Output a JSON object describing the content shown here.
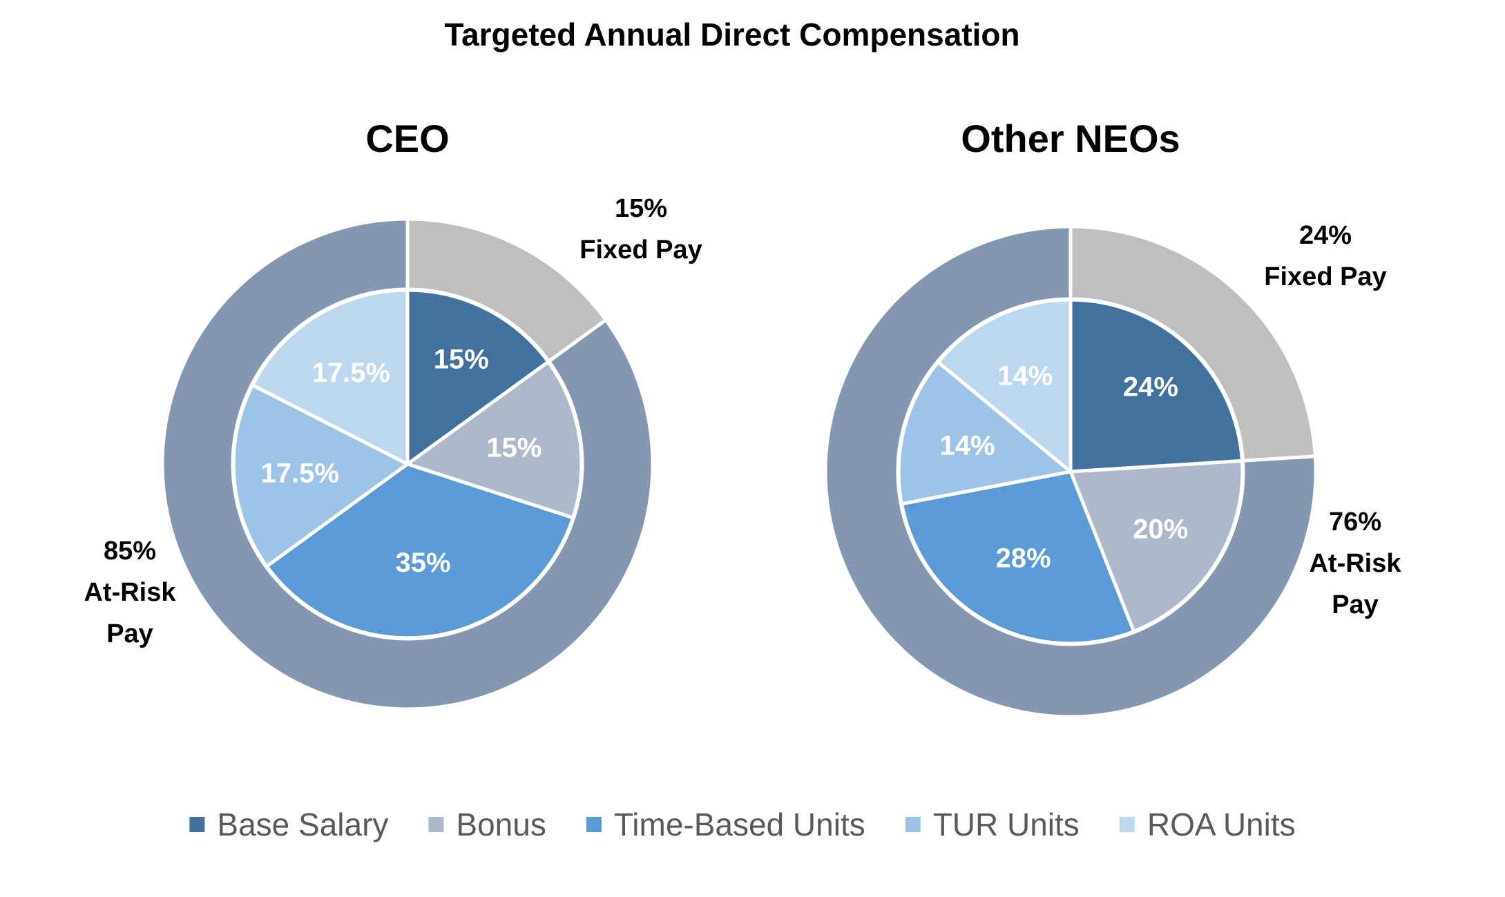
{
  "chart_data": {
    "type": "pie",
    "title": "Targeted Annual Direct Compensation",
    "categories": [
      "Base Salary",
      "Bonus",
      "Time-Based Units",
      "TUR Units",
      "ROA Units"
    ],
    "colors": {
      "Base Salary": "#41719c",
      "Bonus": "#adb9ca",
      "Time-Based Units": "#5b9bd5",
      "TUR Units": "#9dc3e6",
      "ROA Units": "#bdd7ee",
      "Fixed Pay": "#bfbfbf",
      "At-Risk Pay": "#8497b0",
      "separator": "#ffffff",
      "text_dark": "#000000",
      "text_light": "#ffffff",
      "legend_text": "#595959"
    },
    "charts": [
      {
        "name": "CEO",
        "inner": [
          {
            "category": "Base Salary",
            "value": 15,
            "label": "15%"
          },
          {
            "category": "Bonus",
            "value": 15,
            "label": "15%"
          },
          {
            "category": "Time-Based Units",
            "value": 35,
            "label": "35%"
          },
          {
            "category": "TUR Units",
            "value": 17.5,
            "label": "17.5%"
          },
          {
            "category": "ROA Units",
            "value": 17.5,
            "label": "17.5%"
          }
        ],
        "outer": [
          {
            "category": "Fixed Pay",
            "value": 15,
            "label_lines": [
              "15%",
              "Fixed Pay"
            ]
          },
          {
            "category": "At-Risk Pay",
            "value": 85,
            "label_lines": [
              "85%",
              "At-Risk",
              "Pay"
            ]
          }
        ]
      },
      {
        "name": "Other NEOs",
        "inner": [
          {
            "category": "Base Salary",
            "value": 24,
            "label": "24%"
          },
          {
            "category": "Bonus",
            "value": 20,
            "label": "20%"
          },
          {
            "category": "Time-Based Units",
            "value": 28,
            "label": "28%"
          },
          {
            "category": "TUR Units",
            "value": 14,
            "label": "14%"
          },
          {
            "category": "ROA Units",
            "value": 14,
            "label": "14%"
          }
        ],
        "outer": [
          {
            "category": "Fixed Pay",
            "value": 24,
            "label_lines": [
              "24%",
              "Fixed Pay"
            ]
          },
          {
            "category": "At-Risk Pay",
            "value": 76,
            "label_lines": [
              "76%",
              "At-Risk",
              "Pay"
            ]
          }
        ]
      }
    ],
    "legend": [
      "Base Salary",
      "Bonus",
      "Time-Based Units",
      "TUR Units",
      "ROA Units"
    ],
    "legend_position": "bottom-center"
  }
}
